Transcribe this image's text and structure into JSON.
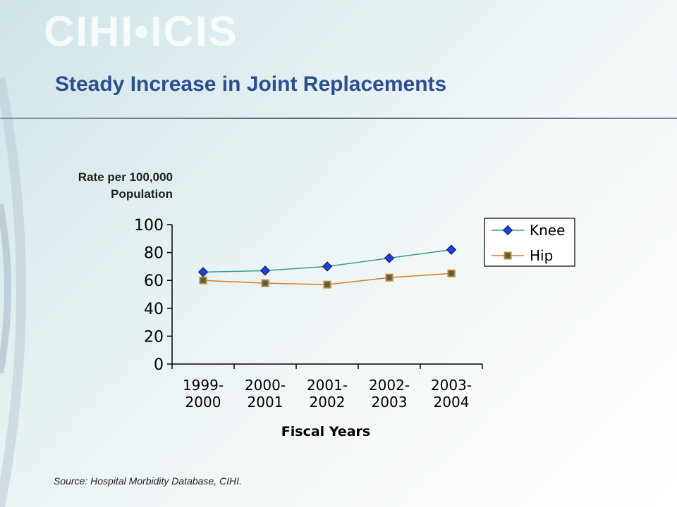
{
  "header": {
    "logo_text": "CIHI•ICIS",
    "title": "Steady Increase in Joint Replacements"
  },
  "footer": {
    "source": "Source: Hospital Morbidity Database, CIHI."
  },
  "colors": {
    "title": "#2c4f8f",
    "knee_line": "#3a9a8a",
    "knee_marker": "#1f3fd6",
    "hip_line": "#e07a1f",
    "hip_marker": "#1f6f6a"
  },
  "chart_data": {
    "type": "line",
    "title": "",
    "ylabel": "Rate per 100,000 Population",
    "ylabel_lines": [
      "Rate per 100,000",
      "Population"
    ],
    "xlabel": "Fiscal Years",
    "categories": [
      "1999-2000",
      "2000-2001",
      "2001-2002",
      "2002-2003",
      "2003-2004"
    ],
    "category_lines": [
      [
        "1999-",
        "2000"
      ],
      [
        "2000-",
        "2001"
      ],
      [
        "2001-",
        "2002"
      ],
      [
        "2002-",
        "2003"
      ],
      [
        "2003-",
        "2004"
      ]
    ],
    "ylim": [
      0,
      100
    ],
    "yticks": [
      0,
      20,
      40,
      60,
      80,
      100
    ],
    "grid": false,
    "legend_position": "right",
    "series": [
      {
        "name": "Knee",
        "marker": "diamond",
        "values": [
          66,
          67,
          70,
          76,
          82
        ]
      },
      {
        "name": "Hip",
        "marker": "square",
        "values": [
          60,
          58,
          57,
          62,
          65
        ]
      }
    ]
  }
}
